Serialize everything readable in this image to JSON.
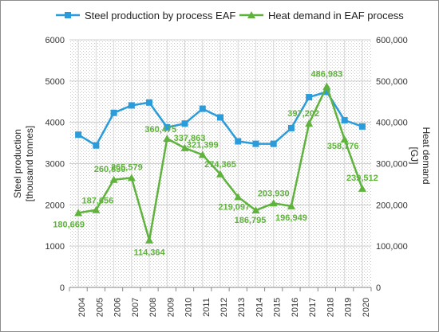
{
  "chart_data": {
    "type": "line",
    "title": "",
    "categories": [
      "2004",
      "2005",
      "2006",
      "2007",
      "2008",
      "2009",
      "2010",
      "2011",
      "2012",
      "2013",
      "2014",
      "2015",
      "2016",
      "2017",
      "2018",
      "2019",
      "2020"
    ],
    "series": [
      {
        "name": "Steel production by process EAF",
        "axis": "left",
        "color": "#2a9bdb",
        "marker": "square",
        "values": [
          3700,
          3440,
          4230,
          4410,
          4480,
          3880,
          3970,
          4330,
          4120,
          3540,
          3480,
          3480,
          3860,
          4610,
          4740,
          4050,
          3900
        ]
      },
      {
        "name": "Heat demand in EAF process",
        "axis": "right",
        "color": "#5fb33c",
        "marker": "triangle",
        "values": [
          180669,
          187656,
          260830,
          265579,
          114364,
          360475,
          337863,
          321399,
          274365,
          219097,
          186795,
          203930,
          196949,
          397202,
          486983,
          358776,
          239512
        ],
        "labels": [
          "180,669",
          "187,656",
          "260,830",
          "265,579",
          "114,364",
          "360,475",
          "337,863",
          "321,399",
          "274,365",
          "219,097",
          "186,795",
          "203,930",
          "196,949",
          "397,202",
          "486,983",
          "358,776",
          "239,512"
        ]
      }
    ],
    "y_left": {
      "label_lines": [
        "Steel production",
        "[thousand tonnes]"
      ],
      "ylim": [
        0,
        6000
      ],
      "ticks": [
        "0",
        "1000",
        "2000",
        "3000",
        "4000",
        "5000",
        "6000"
      ]
    },
    "y_right": {
      "label_lines": [
        "Heat demand",
        "[GJ]"
      ],
      "ylim": [
        0,
        600000
      ],
      "ticks": [
        "0",
        "100,000",
        "200,000",
        "300,000",
        "400,000",
        "500,000",
        "600,000"
      ]
    },
    "grid": true,
    "legend_position": "top"
  }
}
